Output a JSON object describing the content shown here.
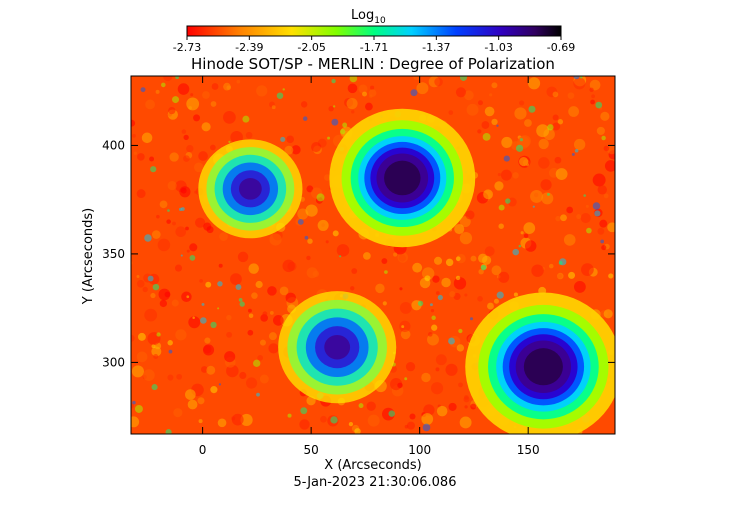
{
  "colorbar": {
    "label_base": "Log",
    "label_sub": "10",
    "ticks": [
      "-2.73",
      "-2.39",
      "-2.05",
      "-1.71",
      "-1.37",
      "-1.03",
      "-0.69"
    ]
  },
  "footer": {
    "timestamp": "5-Jan-2023 21:30:06.086"
  },
  "chart_data": {
    "type": "heatmap",
    "title": "Hinode SOT/SP - MERLIN : Degree of Polarization",
    "xlabel": "X (Arcseconds)",
    "ylabel": "Y (Arcseconds)",
    "xlim": [
      -33,
      190
    ],
    "ylim": [
      267,
      432
    ],
    "x_ticks": [
      0,
      50,
      100,
      150
    ],
    "y_ticks": [
      300,
      350,
      400
    ],
    "color_scale": {
      "min": -2.73,
      "max": -0.69,
      "colormap": "rainbow (red low to black high)"
    },
    "features": [
      {
        "kind": "sunspot",
        "x": 92,
        "y": 385,
        "radius": 14
      },
      {
        "kind": "sunspot",
        "x": 157,
        "y": 298,
        "radius": 15
      },
      {
        "kind": "plage",
        "x": 62,
        "y": 307,
        "radius": 17
      },
      {
        "kind": "plage",
        "x": 22,
        "y": 380,
        "radius": 15
      }
    ]
  }
}
